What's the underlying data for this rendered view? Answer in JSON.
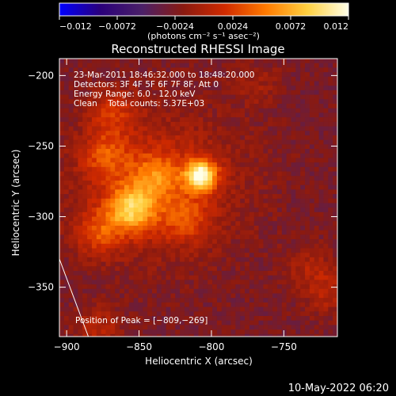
{
  "colorbar": {
    "ticks": [
      -0.012,
      -0.0072,
      -0.0024,
      0.0024,
      0.0072,
      0.012
    ],
    "tick_labels": [
      "−0.012",
      "−0.0072",
      "−0.0024",
      "0.0024",
      "0.0072",
      "0.012"
    ],
    "units_label": "(photons cm⁻² s⁻¹ asec⁻²)",
    "range": [
      -0.012,
      0.012
    ],
    "colors": [
      "#0000ff",
      "#2a007a",
      "#4b2068",
      "#8a1a10",
      "#d02a00",
      "#ff7a00",
      "#ffd040",
      "#ffffe8"
    ]
  },
  "chart_data": {
    "type": "heatmap",
    "title": "Reconstructed RHESSI Image",
    "xlabel": "Heliocentric X (arcsec)",
    "ylabel": "Heliocentric Y (arcsec)",
    "xlim": [
      -905,
      -713
    ],
    "ylim": [
      -385,
      -188
    ],
    "x_ticks": [
      -900,
      -850,
      -800,
      -750
    ],
    "x_tick_labels": [
      "−900",
      "−850",
      "−800",
      "−750"
    ],
    "y_ticks": [
      -200,
      -250,
      -300,
      -350
    ],
    "y_tick_labels": [
      "−200",
      "−250",
      "−300",
      "−350"
    ],
    "sources": [
      {
        "x": -809,
        "y": -269,
        "peak": 0.012
      },
      {
        "x": -857,
        "y": -293,
        "peak": 0.0085
      },
      {
        "x": -840,
        "y": -270,
        "peak": 0.0045
      },
      {
        "x": -875,
        "y": -255,
        "peak": 0.0038
      },
      {
        "x": -880,
        "y": -310,
        "peak": 0.004
      },
      {
        "x": -820,
        "y": -300,
        "peak": 0.0035
      },
      {
        "x": -870,
        "y": -225,
        "peak": 0.003
      },
      {
        "x": -720,
        "y": -352,
        "peak": 0.0024
      },
      {
        "x": -735,
        "y": -335,
        "peak": 0.0018
      },
      {
        "x": -770,
        "y": -205,
        "peak": 0.0012
      },
      {
        "x": -880,
        "y": -378,
        "peak": 0.0025
      }
    ],
    "background": -0.0026,
    "limb_line": [
      [
        -905,
        -330
      ],
      [
        -885,
        -385
      ]
    ],
    "info_lines": [
      "23-Mar-2011 18:46:32.000 to 18:48:20.000",
      "Detectors: 3F 4F 5F 6F 7F 8F, Att 0",
      "Energy Range: 6.0 - 12.0 keV",
      "Clean    Total counts: 5.37E+03"
    ],
    "peak_label": "Position of Peak = [−809,−269]",
    "peak_position": [
      -809,
      -269
    ],
    "grid": false
  },
  "footer": {
    "date": "10-May-2022 06:20"
  }
}
